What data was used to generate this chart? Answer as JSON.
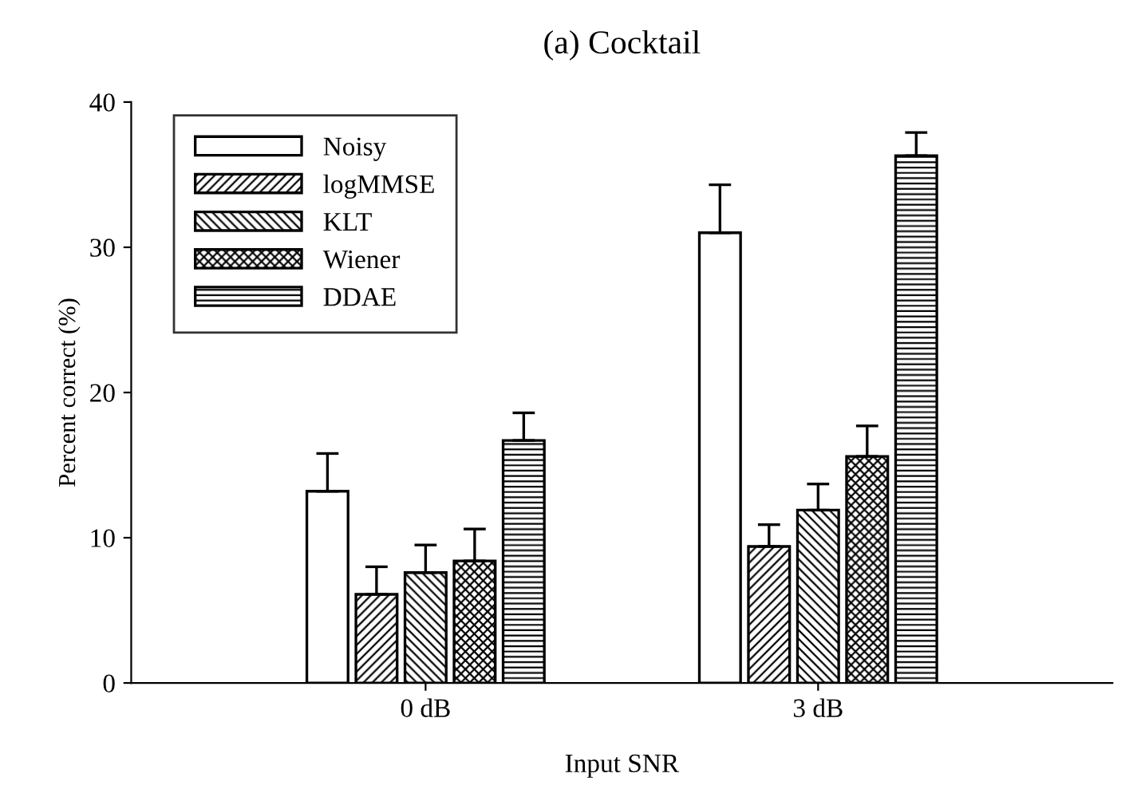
{
  "chart_data": {
    "type": "bar",
    "title": "(a) Cocktail",
    "xlabel": "Input SNR",
    "ylabel": "Percent correct (%)",
    "categories": [
      "0 dB",
      "3 dB"
    ],
    "series": [
      {
        "name": "Noisy",
        "color": "#ffffff",
        "values": [
          13.2,
          31.0
        ],
        "errors": [
          [
            13.2,
            15.8
          ],
          [
            31.0,
            34.3
          ]
        ]
      },
      {
        "name": "logMMSE",
        "color": "#000000",
        "values": [
          6.1,
          9.4
        ],
        "errors": [
          [
            6.1,
            8.0
          ],
          [
            9.4,
            10.9
          ]
        ]
      },
      {
        "name": "KLT",
        "color": "#000000",
        "values": [
          7.6,
          11.9
        ],
        "errors": [
          [
            7.6,
            9.5
          ],
          [
            11.9,
            13.7
          ]
        ]
      },
      {
        "name": "Wiener",
        "color": "#000000",
        "values": [
          8.4,
          15.6
        ],
        "errors": [
          [
            8.4,
            10.6
          ],
          [
            15.6,
            17.7
          ]
        ]
      },
      {
        "name": "DDAE",
        "color": "#000000",
        "values": [
          16.7,
          36.3
        ],
        "errors": [
          [
            16.7,
            18.6
          ],
          [
            36.3,
            37.9
          ]
        ]
      }
    ],
    "ylim": [
      0,
      40
    ],
    "yticks": [
      0,
      10,
      20,
      30,
      40
    ],
    "grid": false,
    "legend": "top left"
  }
}
